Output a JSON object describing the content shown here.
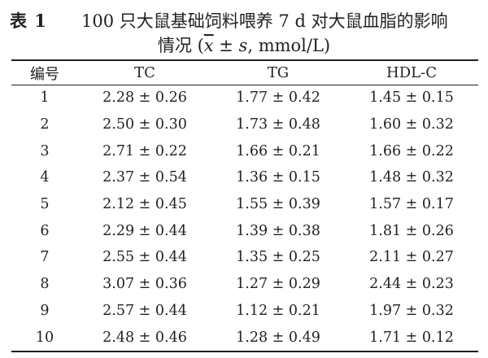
{
  "caption": {
    "label": "表 1",
    "title": "100 只大鼠基础饲料喂养 7 d 对大鼠血脂的影响",
    "subtitle_prefix": "情况 (",
    "subtitle_mean": "x",
    "subtitle_stat": " ± s",
    "subtitle_suffix": ", mmol/L)"
  },
  "table": {
    "headers": [
      "编号",
      "TC",
      "TG",
      "HDL-C"
    ],
    "rows": [
      [
        "1",
        "2.28 ± 0.26",
        "1.77 ± 0.42",
        "1.45 ± 0.15"
      ],
      [
        "2",
        "2.50 ± 0.30",
        "1.73 ± 0.48",
        "1.60 ± 0.32"
      ],
      [
        "3",
        "2.71 ± 0.22",
        "1.66 ± 0.21",
        "1.66 ± 0.22"
      ],
      [
        "4",
        "2.37 ± 0.54",
        "1.36 ± 0.15",
        "1.48 ± 0.32"
      ],
      [
        "5",
        "2.12 ± 0.45",
        "1.55 ± 0.39",
        "1.57 ± 0.17"
      ],
      [
        "6",
        "2.29 ± 0.44",
        "1.39 ± 0.38",
        "1.81 ± 0.26"
      ],
      [
        "7",
        "2.55 ± 0.44",
        "1.35 ± 0.25",
        "2.11 ± 0.27"
      ],
      [
        "8",
        "3.07 ± 0.36",
        "1.27 ± 0.29",
        "2.44 ± 0.23"
      ],
      [
        "9",
        "2.57 ± 0.44",
        "1.12 ± 0.21",
        "1.97 ± 0.32"
      ],
      [
        "10",
        "2.48 ± 0.46",
        "1.28 ± 0.49",
        "1.71 ± 0.12"
      ]
    ]
  }
}
